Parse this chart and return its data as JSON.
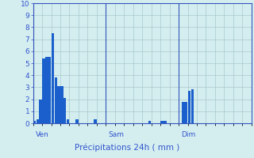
{
  "title": "Précipitations 24h ( mm )",
  "background_color": "#d4eef0",
  "plot_bg_color": "#d4eef0",
  "bar_color": "#1a5fcb",
  "grid_color": "#a8c8cc",
  "axis_color": "#3355bb",
  "text_color": "#3355cc",
  "ylim": [
    0,
    10
  ],
  "yticks": [
    0,
    1,
    2,
    3,
    4,
    5,
    6,
    7,
    8,
    9,
    10
  ],
  "total_hours": 72,
  "day_labels": [
    {
      "label": "Ven",
      "hour": 0
    },
    {
      "label": "Sam",
      "hour": 24
    },
    {
      "label": "Dim",
      "hour": 48
    }
  ],
  "bars": [
    {
      "hour": 0,
      "value": 0.2
    },
    {
      "hour": 1,
      "value": 0.3
    },
    {
      "hour": 2,
      "value": 2.0
    },
    {
      "hour": 3,
      "value": 5.4
    },
    {
      "hour": 4,
      "value": 5.5
    },
    {
      "hour": 5,
      "value": 5.5
    },
    {
      "hour": 6,
      "value": 7.5
    },
    {
      "hour": 7,
      "value": 3.8
    },
    {
      "hour": 8,
      "value": 3.1
    },
    {
      "hour": 9,
      "value": 3.1
    },
    {
      "hour": 10,
      "value": 2.1
    },
    {
      "hour": 11,
      "value": 0.3
    },
    {
      "hour": 14,
      "value": 0.3
    },
    {
      "hour": 20,
      "value": 0.3
    },
    {
      "hour": 38,
      "value": 0.2
    },
    {
      "hour": 42,
      "value": 0.2
    },
    {
      "hour": 43,
      "value": 0.2
    },
    {
      "hour": 49,
      "value": 1.8
    },
    {
      "hour": 50,
      "value": 1.8
    },
    {
      "hour": 51,
      "value": 2.7
    },
    {
      "hour": 52,
      "value": 2.8
    }
  ]
}
